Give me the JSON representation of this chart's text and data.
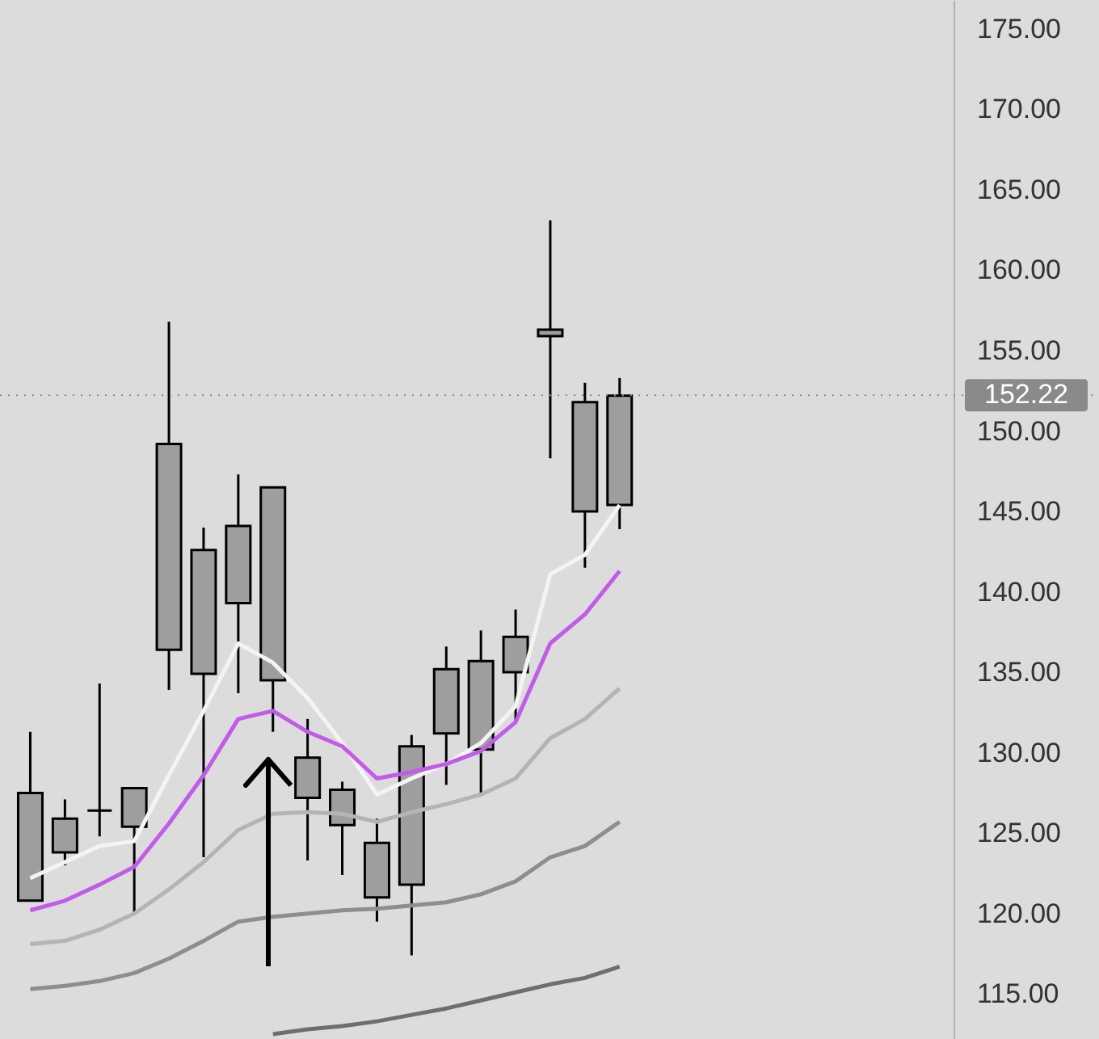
{
  "chart_data": {
    "type": "candlestick",
    "categories": [
      null,
      null,
      null,
      null,
      null,
      null,
      null,
      null,
      null,
      null,
      null,
      null,
      null,
      null,
      null,
      null,
      null,
      null
    ],
    "ohlc": [
      [
        120.8,
        131.3,
        120.8,
        127.5
      ],
      [
        123.8,
        127.1,
        123.0,
        125.9
      ],
      [
        126.4,
        134.3,
        124.8,
        126.4
      ],
      [
        125.4,
        127.8,
        120.0,
        127.8
      ],
      [
        136.4,
        156.8,
        133.9,
        149.2
      ],
      [
        134.9,
        144.0,
        123.5,
        142.6
      ],
      [
        139.3,
        147.3,
        133.7,
        144.1
      ],
      [
        134.5,
        146.5,
        131.3,
        146.5
      ],
      [
        127.2,
        132.1,
        123.3,
        129.7
      ],
      [
        125.5,
        128.2,
        122.4,
        127.7
      ],
      [
        121.0,
        125.9,
        119.5,
        124.4
      ],
      [
        121.8,
        131.1,
        117.4,
        130.4
      ],
      [
        131.2,
        136.6,
        128.0,
        135.2
      ],
      [
        130.2,
        137.6,
        127.4,
        135.7
      ],
      [
        135.0,
        138.9,
        131.9,
        137.2
      ],
      [
        155.9,
        163.1,
        148.3,
        156.3
      ],
      [
        145.0,
        153.0,
        141.5,
        151.8
      ],
      [
        145.4,
        153.3,
        143.9,
        152.2
      ]
    ],
    "series": [
      {
        "type": "line",
        "color": "#f4f4f4",
        "values": [
          122.2,
          123.2,
          124.2,
          124.5,
          128.6,
          132.6,
          136.8,
          135.6,
          133.4,
          130.6,
          127.4,
          128.4,
          129.3,
          130.6,
          132.9,
          141.1,
          142.3,
          145.4
        ]
      },
      {
        "type": "line",
        "color": "#c25be8",
        "values": [
          120.2,
          120.8,
          121.8,
          122.9,
          125.6,
          128.6,
          132.1,
          132.6,
          131.3,
          130.4,
          128.4,
          128.8,
          129.3,
          130.1,
          131.9,
          136.8,
          138.6,
          141.3
        ]
      },
      {
        "type": "line",
        "color": "#b4b4b4",
        "values": [
          118.1,
          118.3,
          119.0,
          120.0,
          121.5,
          123.2,
          125.2,
          126.2,
          126.3,
          126.2,
          125.7,
          126.3,
          126.8,
          127.4,
          128.4,
          130.9,
          132.1,
          134.0
        ]
      },
      {
        "type": "line",
        "color": "#8e8e8e",
        "values": [
          115.3,
          115.5,
          115.8,
          116.3,
          117.2,
          118.3,
          119.5,
          119.8,
          120.0,
          120.2,
          120.3,
          120.5,
          120.7,
          121.2,
          122.0,
          123.5,
          124.2,
          125.7
        ]
      },
      {
        "type": "line",
        "color": "#6e6e6e",
        "values": [
          null,
          null,
          null,
          null,
          null,
          null,
          null,
          112.5,
          112.8,
          113.0,
          113.3,
          113.7,
          114.1,
          114.6,
          115.1,
          115.6,
          116.0,
          116.7
        ]
      }
    ],
    "ylim": [
      112.2,
      176.8
    ],
    "yticks": [
      {
        "value": 115,
        "label": "115.00"
      },
      {
        "value": 120,
        "label": "120.00"
      },
      {
        "value": 125,
        "label": "125.00"
      },
      {
        "value": 130,
        "label": "130.00"
      },
      {
        "value": 135,
        "label": "135.00"
      },
      {
        "value": 140,
        "label": "140.00"
      },
      {
        "value": 145,
        "label": "145.00"
      },
      {
        "value": 150,
        "label": "150.00"
      },
      {
        "value": 155,
        "label": "155.00"
      },
      {
        "value": 160,
        "label": "160.00"
      },
      {
        "value": 165,
        "label": "165.00"
      },
      {
        "value": 170,
        "label": "170.00"
      },
      {
        "value": 175,
        "label": "175.00"
      }
    ],
    "ref_lines": [
      {
        "axis": "y",
        "value": 152.22,
        "label": "152.22",
        "line_style": "dotted",
        "color": "#8a8a8a"
      }
    ],
    "marker": "none",
    "line_style": "solid",
    "tick_labels": "y"
  }
}
